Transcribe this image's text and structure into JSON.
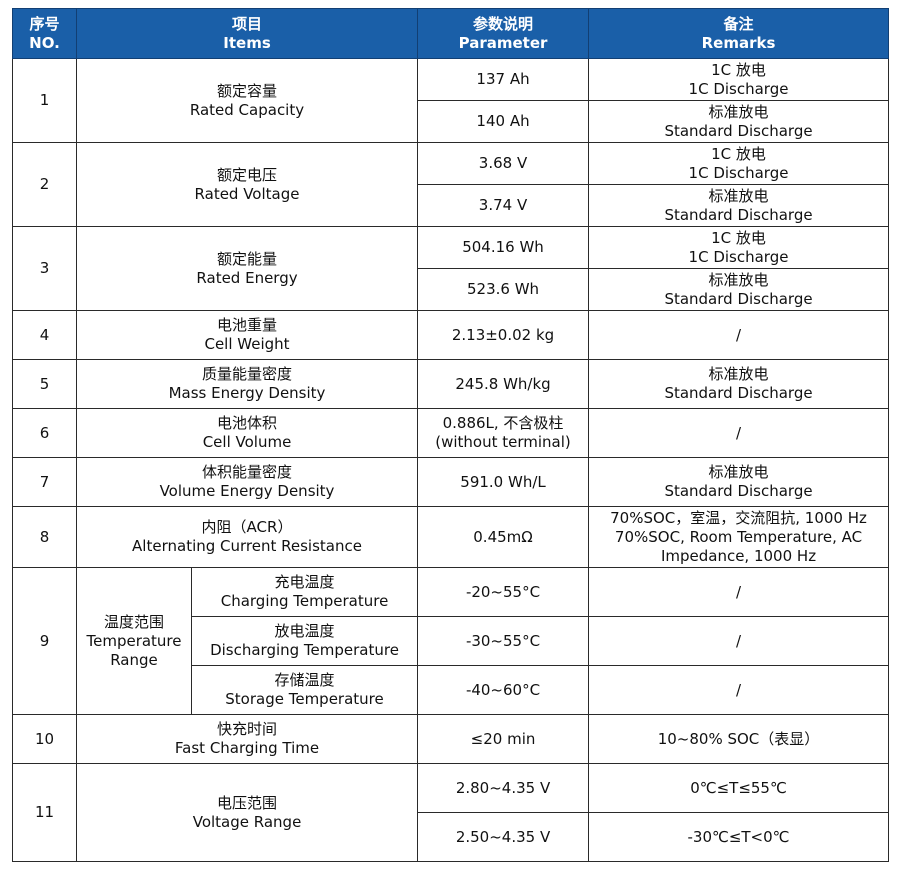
{
  "header": {
    "no": {
      "zh": "序号",
      "en": "NO."
    },
    "items": {
      "zh": "项目",
      "en": "Items"
    },
    "parameter": {
      "zh": "参数说明",
      "en": "Parameter"
    },
    "remarks": {
      "zh": "备注",
      "en": "Remarks"
    }
  },
  "rows": {
    "r1": {
      "no": "1",
      "zh": "额定容量",
      "en": "Rated Capacity",
      "p1": "137 Ah",
      "r1zh": "1C 放电",
      "r1en": "1C Discharge",
      "p2": "140 Ah",
      "r2zh": "标准放电",
      "r2en": "Standard Discharge"
    },
    "r2": {
      "no": "2",
      "zh": "额定电压",
      "en": "Rated Voltage",
      "p1": "3.68 V",
      "r1zh": "1C 放电",
      "r1en": "1C Discharge",
      "p2": "3.74 V",
      "r2zh": "标准放电",
      "r2en": "Standard Discharge"
    },
    "r3": {
      "no": "3",
      "zh": "额定能量",
      "en": "Rated Energy",
      "p1": "504.16 Wh",
      "r1zh": "1C 放电",
      "r1en": "1C Discharge",
      "p2": "523.6 Wh",
      "r2zh": "标准放电",
      "r2en": "Standard Discharge"
    },
    "r4": {
      "no": "4",
      "zh": "电池重量",
      "en": "Cell Weight",
      "p": "2.13±0.02 kg",
      "r": "/"
    },
    "r5": {
      "no": "5",
      "zh": "质量能量密度",
      "en": "Mass Energy Density",
      "p": "245.8 Wh/kg",
      "rzh": "标准放电",
      "ren": "Standard Discharge"
    },
    "r6": {
      "no": "6",
      "zh": "电池体积",
      "en": "Cell Volume",
      "p1": "0.886L, 不含极柱",
      "p2": "(without terminal)",
      "r": "/"
    },
    "r7": {
      "no": "7",
      "zh": "体积能量密度",
      "en": "Volume Energy Density",
      "p": "591.0 Wh/L",
      "rzh": "标准放电",
      "ren": "Standard Discharge"
    },
    "r8": {
      "no": "8",
      "zh": "内阻（ACR）",
      "en": "Alternating Current Resistance",
      "p": "0.45mΩ",
      "rzh": "70%SOC，室温，交流阻抗, 1000 Hz",
      "ren": "70%SOC, Room Temperature, AC Impedance, 1000 Hz"
    },
    "r9": {
      "no": "9",
      "zh": "温度范围",
      "en1": "Temperature",
      "en2": "Range",
      "s1zh": "充电温度",
      "s1en": "Charging Temperature",
      "s1p": "-20~55°C",
      "s1r": "/",
      "s2zh": "放电温度",
      "s2en": "Discharging Temperature",
      "s2p": "-30~55°C",
      "s2r": "/",
      "s3zh": "存储温度",
      "s3en": "Storage Temperature",
      "s3p": "-40~60°C",
      "s3r": "/"
    },
    "r10": {
      "no": "10",
      "zh": "快充时间",
      "en": "Fast Charging Time",
      "p": "≤20 min",
      "r": "10~80% SOC（表显）"
    },
    "r11": {
      "no": "11",
      "zh": "电压范围",
      "en": "Voltage Range",
      "p1": "2.80~4.35 V",
      "r1": "0℃≤T≤55℃",
      "p2": "2.50~4.35 V",
      "r2": "-30℃≤T<0℃"
    }
  }
}
